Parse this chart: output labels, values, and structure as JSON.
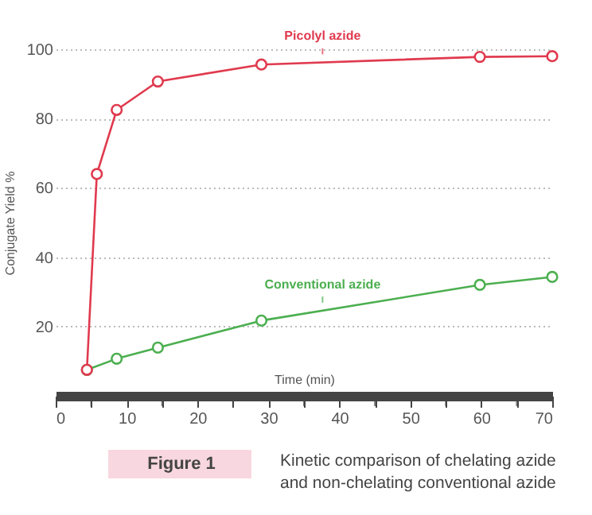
{
  "chart_data": {
    "type": "line",
    "xlabel": "Time (min)",
    "ylabel": "Conjugate Yield %",
    "xlim": [
      0,
      70
    ],
    "xticks": [
      0,
      {
        "value": 5,
        "label": null
      },
      10,
      {
        "value": 15,
        "label": null
      },
      20,
      {
        "value": 25,
        "label": null
      },
      30,
      {
        "value": 35,
        "label": null
      },
      40,
      {
        "value": 45,
        "label": null
      },
      50,
      {
        "value": 55,
        "label": null
      },
      60,
      {
        "value": 65,
        "label": null
      },
      70
    ],
    "ylim": [
      0,
      100
    ],
    "yticks": [
      20,
      40,
      60,
      80,
      100
    ],
    "grid": "y",
    "marker": "circle",
    "series": [
      {
        "name": "Picolyl azide",
        "color": "#e03a4e",
        "x": [
          4.4,
          5.8,
          8.6,
          14.4,
          29,
          59.8,
          70
        ],
        "values": [
          7.5,
          64,
          82.5,
          90.7,
          95.6,
          97.8,
          98
        ]
      },
      {
        "name": "Conventional azide",
        "color": "#4caf50",
        "x": [
          4.4,
          8.6,
          14.4,
          29,
          59.8,
          70
        ],
        "values": [
          7.5,
          10.7,
          13.9,
          21.7,
          32,
          34.3
        ]
      }
    ],
    "annotations": [
      "Figure 1",
      "Kinetic comparison of chelating azide and non-chelating conventional azide"
    ]
  }
}
